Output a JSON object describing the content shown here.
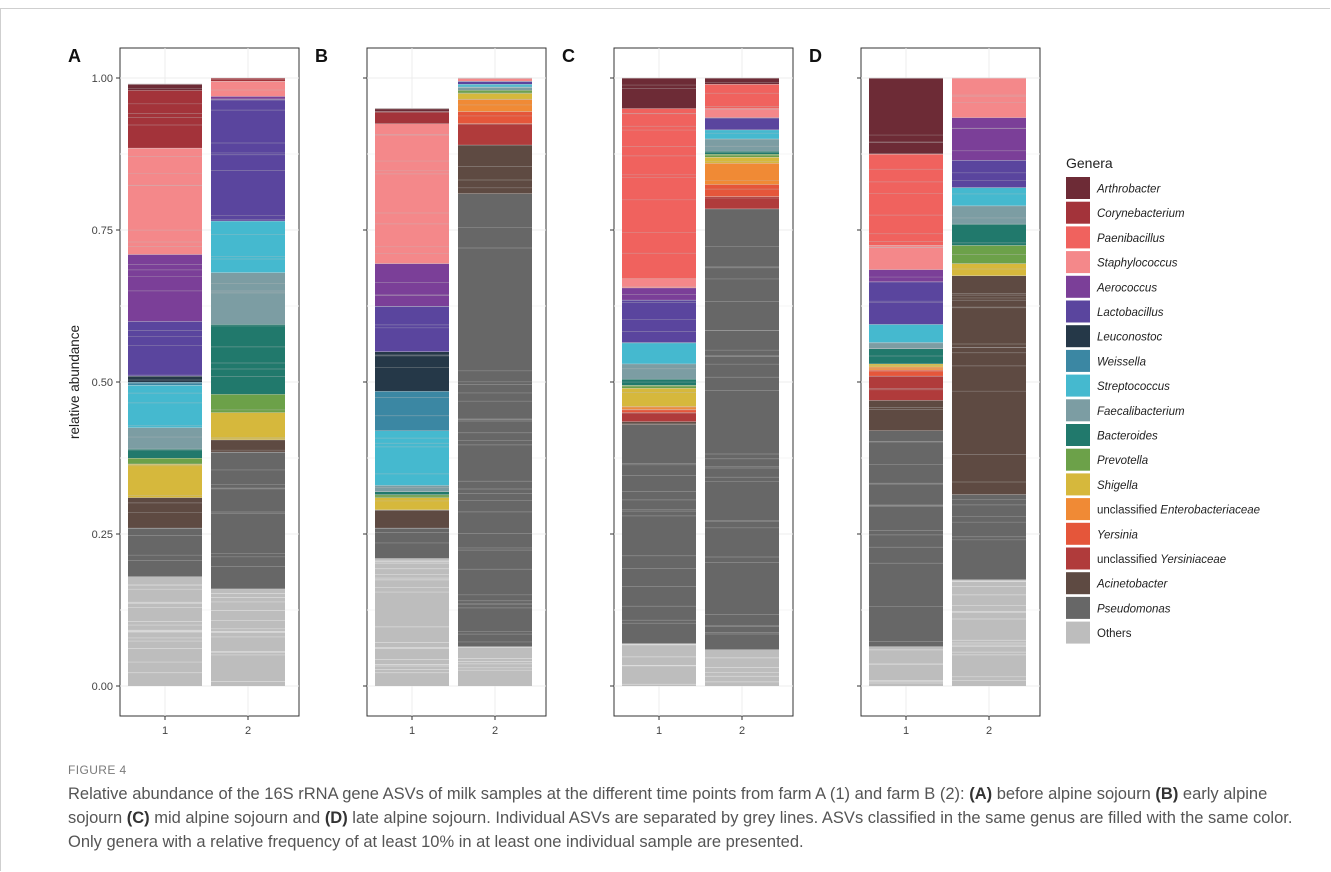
{
  "figure": {
    "label": "FIGURE 4",
    "caption_parts": [
      {
        "t": "Relative abundance of the 16S rRNA gene ASVs of milk samples at the different time points from farm A (1) and farm B (2): ",
        "b": false
      },
      {
        "t": "(A)",
        "b": true
      },
      {
        "t": " before alpine sojourn ",
        "b": false
      },
      {
        "t": "(B)",
        "b": true
      },
      {
        "t": " early alpine sojourn ",
        "b": false
      },
      {
        "t": "(C)",
        "b": true
      },
      {
        "t": " mid alpine sojourn and ",
        "b": false
      },
      {
        "t": "(D)",
        "b": true
      },
      {
        "t": " late alpine sojourn. Individual ASVs are separated by grey lines. ASVs classified in the same genus are filled with the same color. Only genera with a relative frequency of at least 10% in at least one individual sample are presented.",
        "b": false
      }
    ]
  },
  "chart_data": {
    "type": "bar",
    "stacked": true,
    "ylabel": "relative abundance",
    "ylim": [
      0,
      1
    ],
    "yticks": [
      "0.00",
      "0.25",
      "0.50",
      "0.75",
      "1.00"
    ],
    "legend": {
      "title": "Genera",
      "placement": "right",
      "entries": [
        {
          "key": "Arthrobacter",
          "prefix": "",
          "name": "Arthrobacter",
          "italic": true,
          "color": "#6d2b36"
        },
        {
          "key": "Corynebacterium",
          "prefix": "",
          "name": "Corynebacterium",
          "italic": true,
          "color": "#a3333a"
        },
        {
          "key": "Paenibacillus",
          "prefix": "",
          "name": "Paenibacillus",
          "italic": true,
          "color": "#f0625e"
        },
        {
          "key": "Staphylococcus",
          "prefix": "",
          "name": "Staphylococcus",
          "italic": true,
          "color": "#f4888a"
        },
        {
          "key": "Aerococcus",
          "prefix": "",
          "name": "Aerococcus",
          "italic": true,
          "color": "#7b3f98"
        },
        {
          "key": "Lactobacillus",
          "prefix": "",
          "name": "Lactobacillus",
          "italic": true,
          "color": "#5a459e"
        },
        {
          "key": "Leuconostoc",
          "prefix": "",
          "name": "Leuconostoc",
          "italic": true,
          "color": "#253848"
        },
        {
          "key": "Weissella",
          "prefix": "",
          "name": "Weissella",
          "italic": true,
          "color": "#3b87a3"
        },
        {
          "key": "Streptococcus",
          "prefix": "",
          "name": "Streptococcus",
          "italic": true,
          "color": "#45b9cf"
        },
        {
          "key": "Faecalibacterium",
          "prefix": "",
          "name": "Faecalibacterium",
          "italic": true,
          "color": "#7c9da3"
        },
        {
          "key": "Bacteroides",
          "prefix": "",
          "name": "Bacteroides",
          "italic": true,
          "color": "#21796c"
        },
        {
          "key": "Prevotella",
          "prefix": "",
          "name": "Prevotella",
          "italic": true,
          "color": "#6ca149"
        },
        {
          "key": "Shigella",
          "prefix": "",
          "name": "Shigella",
          "italic": true,
          "color": "#d6b83c"
        },
        {
          "key": "unclassified Enterobacteriaceae",
          "prefix": "unclassified ",
          "name": "Enterobacteriaceae",
          "italic": true,
          "color": "#f08a35"
        },
        {
          "key": "Yersinia",
          "prefix": "",
          "name": "Yersinia",
          "italic": true,
          "color": "#e5563a"
        },
        {
          "key": "unclassified Yersiniaceae",
          "prefix": "unclassified ",
          "name": "Yersiniaceae",
          "italic": true,
          "color": "#b03b3b"
        },
        {
          "key": "Acinetobacter",
          "prefix": "",
          "name": "Acinetobacter",
          "italic": true,
          "color": "#5e4a42"
        },
        {
          "key": "Pseudomonas",
          "prefix": "",
          "name": "Pseudomonas",
          "italic": true,
          "color": "#676767"
        },
        {
          "key": "Others",
          "prefix": "",
          "name": "Others",
          "italic": false,
          "color": "#bdbdbd"
        }
      ]
    },
    "panels": [
      {
        "label": "A",
        "categories": [
          "1",
          "2"
        ],
        "bars": [
          {
            "x": "1",
            "segments": [
              {
                "genus": "Others",
                "value": 0.18
              },
              {
                "genus": "Pseudomonas",
                "value": 0.08
              },
              {
                "genus": "Acinetobacter",
                "value": 0.05
              },
              {
                "genus": "Shigella",
                "value": 0.055
              },
              {
                "genus": "Prevotella",
                "value": 0.01
              },
              {
                "genus": "Bacteroides",
                "value": 0.015
              },
              {
                "genus": "Faecalibacterium",
                "value": 0.035
              },
              {
                "genus": "Streptococcus",
                "value": 0.07
              },
              {
                "genus": "Weissella",
                "value": 0.005
              },
              {
                "genus": "Leuconostoc",
                "value": 0.01
              },
              {
                "genus": "Lactobacillus",
                "value": 0.09
              },
              {
                "genus": "Aerococcus",
                "value": 0.11
              },
              {
                "genus": "Staphylococcus",
                "value": 0.175
              },
              {
                "genus": "Corynebacterium",
                "value": 0.095
              },
              {
                "genus": "Arthrobacter",
                "value": 0.01
              }
            ]
          },
          {
            "x": "2",
            "segments": [
              {
                "genus": "Others",
                "value": 0.16
              },
              {
                "genus": "Pseudomonas",
                "value": 0.225
              },
              {
                "genus": "Acinetobacter",
                "value": 0.02
              },
              {
                "genus": "Shigella",
                "value": 0.045
              },
              {
                "genus": "Prevotella",
                "value": 0.03
              },
              {
                "genus": "Bacteroides",
                "value": 0.115
              },
              {
                "genus": "Faecalibacterium",
                "value": 0.085
              },
              {
                "genus": "Streptococcus",
                "value": 0.085
              },
              {
                "genus": "Lactobacillus",
                "value": 0.2
              },
              {
                "genus": "Aerococcus",
                "value": 0.005
              },
              {
                "genus": "Staphylococcus",
                "value": 0.025
              },
              {
                "genus": "Corynebacterium",
                "value": 0.005
              }
            ]
          }
        ]
      },
      {
        "label": "B",
        "categories": [
          "1",
          "2"
        ],
        "bars": [
          {
            "x": "1",
            "segments": [
              {
                "genus": "Others",
                "value": 0.21
              },
              {
                "genus": "Pseudomonas",
                "value": 0.05
              },
              {
                "genus": "Acinetobacter",
                "value": 0.03
              },
              {
                "genus": "Shigella",
                "value": 0.02
              },
              {
                "genus": "Prevotella",
                "value": 0.005
              },
              {
                "genus": "Bacteroides",
                "value": 0.005
              },
              {
                "genus": "Faecalibacterium",
                "value": 0.01
              },
              {
                "genus": "Streptococcus",
                "value": 0.09
              },
              {
                "genus": "Weissella",
                "value": 0.065
              },
              {
                "genus": "Leuconostoc",
                "value": 0.065
              },
              {
                "genus": "Lactobacillus",
                "value": 0.075
              },
              {
                "genus": "Aerococcus",
                "value": 0.07
              },
              {
                "genus": "Staphylococcus",
                "value": 0.23
              },
              {
                "genus": "Corynebacterium",
                "value": 0.02
              },
              {
                "genus": "Arthrobacter",
                "value": 0.005
              }
            ]
          },
          {
            "x": "2",
            "segments": [
              {
                "genus": "Others",
                "value": 0.065
              },
              {
                "genus": "Pseudomonas",
                "value": 0.745
              },
              {
                "genus": "Acinetobacter",
                "value": 0.08
              },
              {
                "genus": "unclassified Yersiniaceae",
                "value": 0.035
              },
              {
                "genus": "Yersinia",
                "value": 0.02
              },
              {
                "genus": "unclassified Enterobacteriaceae",
                "value": 0.02
              },
              {
                "genus": "Shigella",
                "value": 0.01
              },
              {
                "genus": "Prevotella",
                "value": 0.005
              },
              {
                "genus": "Faecalibacterium",
                "value": 0.005
              },
              {
                "genus": "Streptococcus",
                "value": 0.005
              },
              {
                "genus": "Lactobacillus",
                "value": 0.005
              },
              {
                "genus": "Staphylococcus",
                "value": 0.005
              }
            ]
          }
        ]
      },
      {
        "label": "C",
        "categories": [
          "1",
          "2"
        ],
        "bars": [
          {
            "x": "1",
            "segments": [
              {
                "genus": "Others",
                "value": 0.07
              },
              {
                "genus": "Pseudomonas",
                "value": 0.36
              },
              {
                "genus": "Acinetobacter",
                "value": 0.005
              },
              {
                "genus": "unclassified Yersiniaceae",
                "value": 0.015
              },
              {
                "genus": "Yersinia",
                "value": 0.005
              },
              {
                "genus": "unclassified Enterobacteriaceae",
                "value": 0.005
              },
              {
                "genus": "Shigella",
                "value": 0.03
              },
              {
                "genus": "Prevotella",
                "value": 0.005
              },
              {
                "genus": "Bacteroides",
                "value": 0.01
              },
              {
                "genus": "Faecalibacterium",
                "value": 0.025
              },
              {
                "genus": "Streptococcus",
                "value": 0.035
              },
              {
                "genus": "Lactobacillus",
                "value": 0.07
              },
              {
                "genus": "Aerococcus",
                "value": 0.02
              },
              {
                "genus": "Staphylococcus",
                "value": 0.015
              },
              {
                "genus": "Paenibacillus",
                "value": 0.28
              },
              {
                "genus": "Arthrobacter",
                "value": 0.05
              }
            ]
          },
          {
            "x": "2",
            "segments": [
              {
                "genus": "Others",
                "value": 0.06
              },
              {
                "genus": "Pseudomonas",
                "value": 0.725
              },
              {
                "genus": "unclassified Yersiniaceae",
                "value": 0.02
              },
              {
                "genus": "Yersinia",
                "value": 0.02
              },
              {
                "genus": "unclassified Enterobacteriaceae",
                "value": 0.035
              },
              {
                "genus": "Shigella",
                "value": 0.01
              },
              {
                "genus": "Prevotella",
                "value": 0.005
              },
              {
                "genus": "Bacteroides",
                "value": 0.005
              },
              {
                "genus": "Faecalibacterium",
                "value": 0.02
              },
              {
                "genus": "Streptococcus",
                "value": 0.015
              },
              {
                "genus": "Lactobacillus",
                "value": 0.02
              },
              {
                "genus": "Staphylococcus",
                "value": 0.015
              },
              {
                "genus": "Paenibacillus",
                "value": 0.04
              },
              {
                "genus": "Arthrobacter",
                "value": 0.01
              }
            ]
          }
        ]
      },
      {
        "label": "D",
        "categories": [
          "1",
          "2"
        ],
        "bars": [
          {
            "x": "1",
            "segments": [
              {
                "genus": "Others",
                "value": 0.065
              },
              {
                "genus": "Pseudomonas",
                "value": 0.355
              },
              {
                "genus": "Acinetobacter",
                "value": 0.05
              },
              {
                "genus": "unclassified Yersiniaceae",
                "value": 0.04
              },
              {
                "genus": "Yersinia",
                "value": 0.01
              },
              {
                "genus": "unclassified Enterobacteriaceae",
                "value": 0.005
              },
              {
                "genus": "Shigella",
                "value": 0.005
              },
              {
                "genus": "Bacteroides",
                "value": 0.025
              },
              {
                "genus": "Faecalibacterium",
                "value": 0.01
              },
              {
                "genus": "Streptococcus",
                "value": 0.03
              },
              {
                "genus": "Lactobacillus",
                "value": 0.07
              },
              {
                "genus": "Aerococcus",
                "value": 0.02
              },
              {
                "genus": "Staphylococcus",
                "value": 0.04
              },
              {
                "genus": "Paenibacillus",
                "value": 0.15
              },
              {
                "genus": "Arthrobacter",
                "value": 0.125
              }
            ]
          },
          {
            "x": "2",
            "segments": [
              {
                "genus": "Others",
                "value": 0.175
              },
              {
                "genus": "Pseudomonas",
                "value": 0.14
              },
              {
                "genus": "Acinetobacter",
                "value": 0.36
              },
              {
                "genus": "Shigella",
                "value": 0.02
              },
              {
                "genus": "Prevotella",
                "value": 0.03
              },
              {
                "genus": "Bacteroides",
                "value": 0.035
              },
              {
                "genus": "Faecalibacterium",
                "value": 0.03
              },
              {
                "genus": "Streptococcus",
                "value": 0.03
              },
              {
                "genus": "Lactobacillus",
                "value": 0.045
              },
              {
                "genus": "Aerococcus",
                "value": 0.07
              },
              {
                "genus": "Staphylococcus",
                "value": 0.065
              }
            ]
          }
        ]
      }
    ]
  }
}
